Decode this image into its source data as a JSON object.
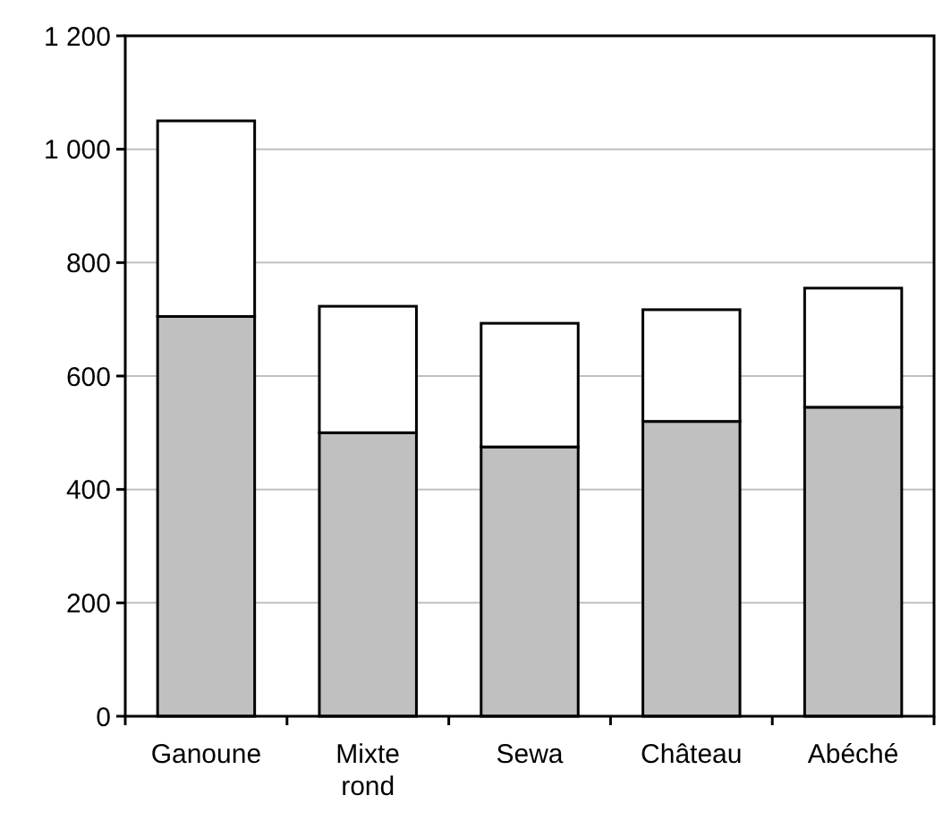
{
  "chart_data": {
    "type": "bar",
    "stacked": true,
    "categories": [
      "Ganoune",
      "Mixte rond",
      "Sewa",
      "Château",
      "Abéché"
    ],
    "series": [
      {
        "color": "#c0c0c0",
        "values": [
          705,
          500,
          475,
          520,
          545
        ]
      },
      {
        "color": "#ffffff",
        "values": [
          345,
          223,
          218,
          197,
          210
        ]
      }
    ],
    "ylim": [
      0,
      1200
    ],
    "yticks": [
      0,
      200,
      400,
      600,
      800,
      {
        "value": 1000,
        "label": "1 000"
      },
      {
        "value": 1200,
        "label": "1 200"
      }
    ],
    "grid": "y"
  }
}
